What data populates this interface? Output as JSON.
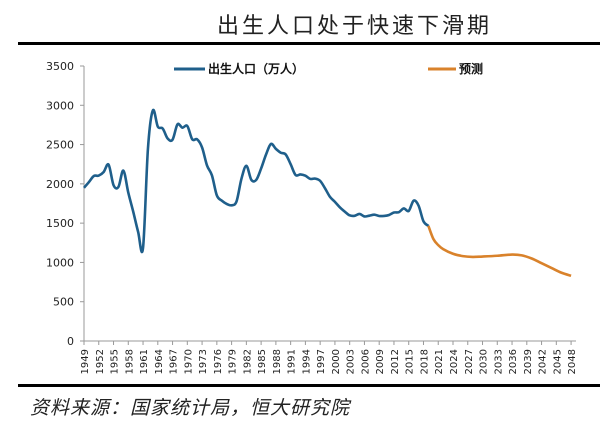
{
  "title": "出生人口处于快速下滑期",
  "source": "资料来源：国家统计局，恒大研究院",
  "colors": {
    "actual": "#1f5f8b",
    "forecast": "#d9822b",
    "axis": "#999999"
  },
  "chart_data": {
    "type": "line",
    "title": "出生人口处于快速下滑期",
    "xlabel": "",
    "ylabel": "",
    "ylim": [
      0,
      3500
    ],
    "yticks": [
      0,
      500,
      1000,
      1500,
      2000,
      2500,
      3000,
      3500
    ],
    "xticks": [
      1949,
      1952,
      1955,
      1958,
      1961,
      1964,
      1967,
      1970,
      1973,
      1976,
      1979,
      1982,
      1985,
      1988,
      1991,
      1994,
      1997,
      2000,
      2003,
      2006,
      2009,
      2012,
      2015,
      2018,
      2021,
      2024,
      2027,
      2030,
      2033,
      2036,
      2039,
      2042,
      2045,
      2048
    ],
    "xlim": [
      1949,
      2049
    ],
    "grid": false,
    "legend_position": "top",
    "series": [
      {
        "name": "出生人口（万人）",
        "color": "#1f5f8b",
        "x": [
          1949,
          1950,
          1951,
          1952,
          1953,
          1954,
          1955,
          1956,
          1957,
          1958,
          1959,
          1960,
          1961,
          1962,
          1963,
          1964,
          1965,
          1966,
          1967,
          1968,
          1969,
          1970,
          1971,
          1972,
          1973,
          1974,
          1975,
          1976,
          1977,
          1978,
          1979,
          1980,
          1981,
          1982,
          1983,
          1984,
          1985,
          1986,
          1987,
          1988,
          1989,
          1990,
          1991,
          1992,
          1993,
          1994,
          1995,
          1996,
          1997,
          1998,
          1999,
          2000,
          2001,
          2002,
          2003,
          2004,
          2005,
          2006,
          2007,
          2008,
          2009,
          2010,
          2011,
          2012,
          2013,
          2014,
          2015,
          2016,
          2017,
          2018,
          2019
        ],
        "values": [
          1950,
          2023,
          2100,
          2105,
          2151,
          2245,
          1984,
          1961,
          2169,
          1889,
          1647,
          1389,
          1187,
          2451,
          2934,
          2729,
          2704,
          2577,
          2563,
          2757,
          2715,
          2736,
          2567,
          2566,
          2463,
          2235,
          2109,
          1853,
          1786,
          1745,
          1727,
          1776,
          2064,
          2230,
          2052,
          2050,
          2196,
          2374,
          2508,
          2445,
          2396,
          2374,
          2250,
          2113,
          2120,
          2104,
          2063,
          2067,
          2038,
          1942,
          1834,
          1771,
          1702,
          1647,
          1599,
          1593,
          1617,
          1585,
          1595,
          1608,
          1591,
          1592,
          1604,
          1635,
          1640,
          1687,
          1655,
          1786,
          1723,
          1523,
          1465
        ]
      },
      {
        "name": "预测",
        "color": "#d9822b",
        "x": [
          2019,
          2020,
          2021,
          2022,
          2024,
          2026,
          2028,
          2030,
          2033,
          2036,
          2038,
          2040,
          2042,
          2044,
          2046,
          2048
        ],
        "values": [
          1465,
          1300,
          1220,
          1170,
          1110,
          1080,
          1070,
          1075,
          1085,
          1100,
          1090,
          1050,
          990,
          930,
          870,
          830
        ]
      }
    ]
  }
}
